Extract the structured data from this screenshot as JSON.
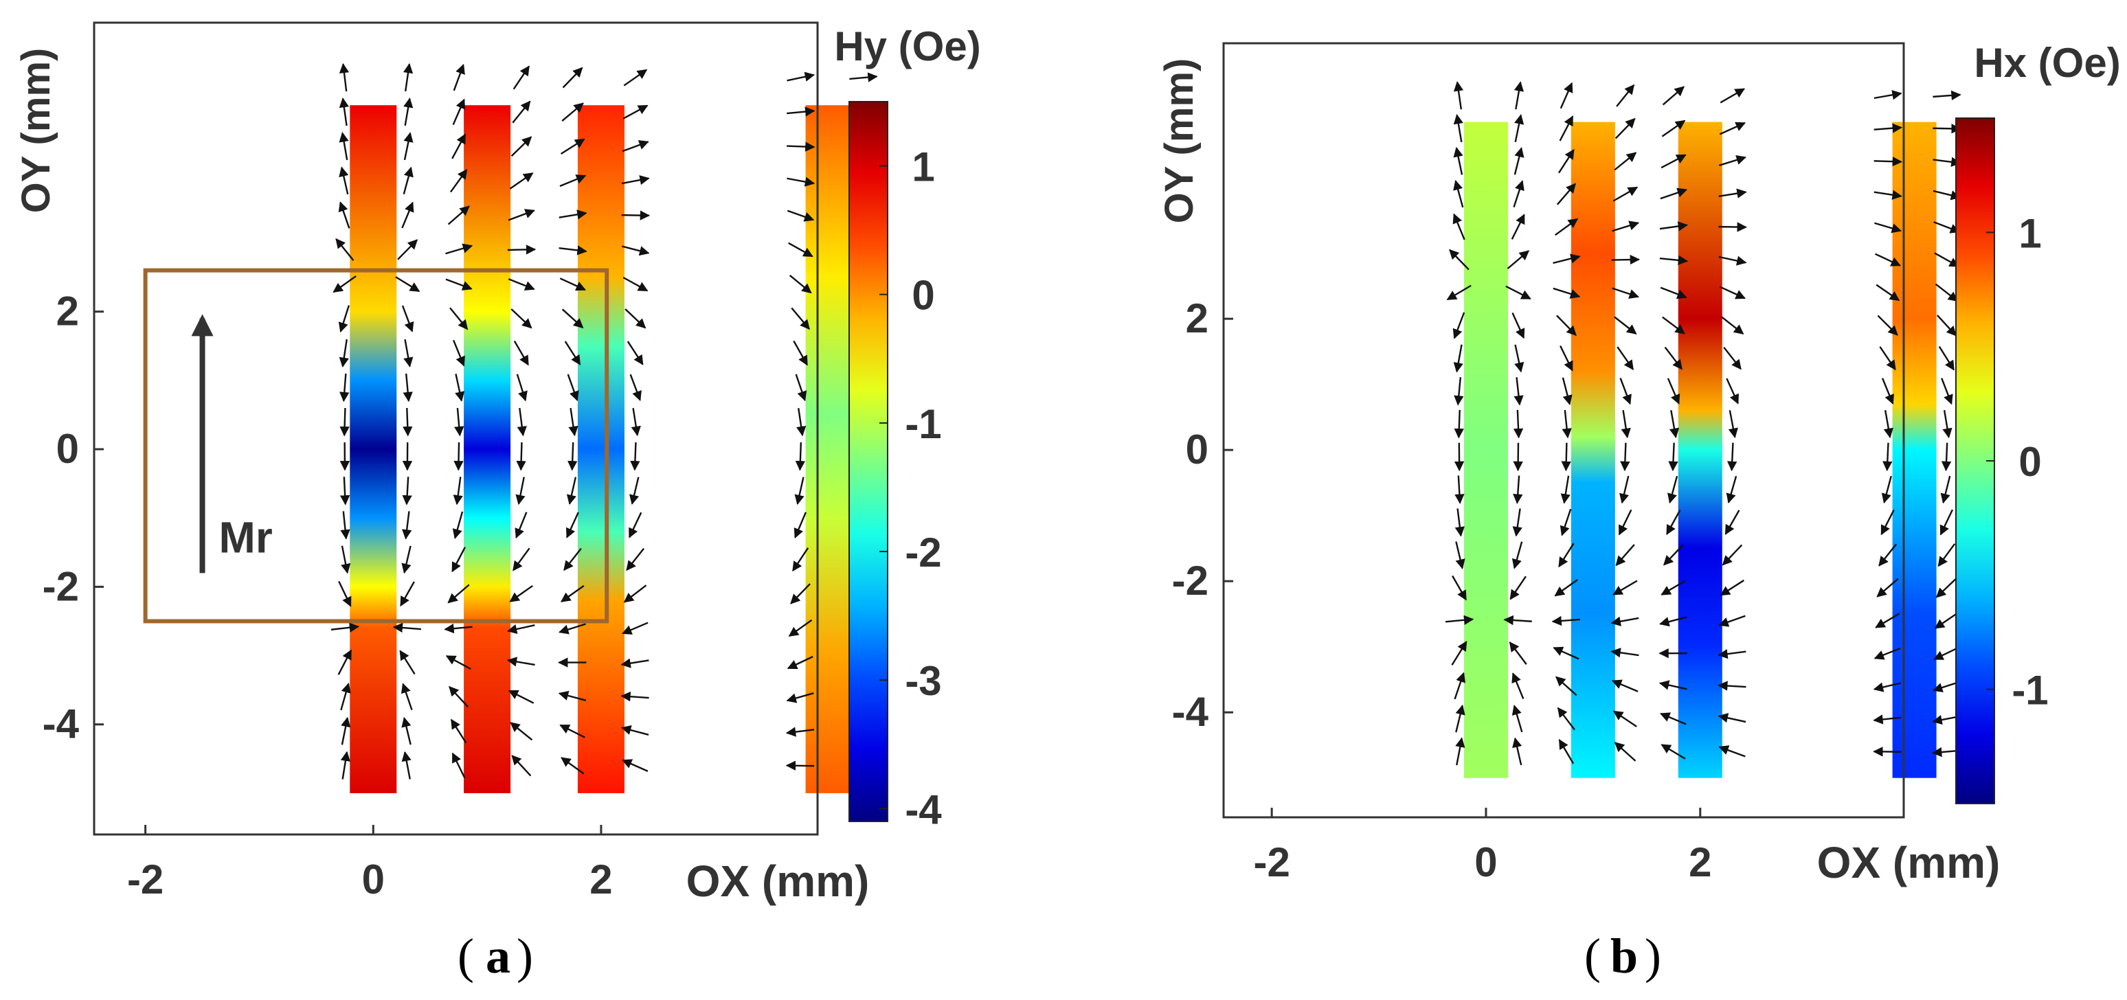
{
  "chart_data": [
    {
      "type": "heatmap",
      "panel": "a",
      "caption_letter": "a",
      "title": "",
      "xlabel": "OX (mm)",
      "ylabel": "OY (mm)",
      "xlim": [
        -2.45,
        3.9
      ],
      "ylim": [
        -5.6,
        6.2
      ],
      "xticks": [
        -2,
        0,
        2
      ],
      "xtick_labels": [
        "-2",
        "0",
        "2"
      ],
      "yticks": [
        -4,
        -2,
        0,
        2
      ],
      "ytick_labels": [
        "-4",
        "-2",
        "0",
        "2"
      ],
      "colorbar": {
        "label": "Hy (Oe)",
        "range": [
          -4.1,
          1.5
        ],
        "ticks": [
          1,
          0,
          -1,
          -2,
          -3,
          -4
        ],
        "tick_labels": [
          "1",
          "0",
          "-1",
          "-2",
          "-3",
          "-4"
        ]
      },
      "strips": [
        {
          "x": 0,
          "y_range": [
            -5,
            5
          ],
          "samples": [
            {
              "y": 5,
              "v": 0.9
            },
            {
              "y": 2,
              "v": -0.4
            },
            {
              "y": 1,
              "v": -2.6
            },
            {
              "y": 0,
              "v": -4.0
            },
            {
              "y": -1,
              "v": -2.6
            },
            {
              "y": -2,
              "v": -0.6
            },
            {
              "y": -2.6,
              "v": 0.3
            },
            {
              "y": -5,
              "v": 1.0
            }
          ]
        },
        {
          "x": 1,
          "y_range": [
            -5,
            5
          ],
          "samples": [
            {
              "y": 5,
              "v": 0.9
            },
            {
              "y": 2,
              "v": -0.6
            },
            {
              "y": 1,
              "v": -2.2
            },
            {
              "y": 0,
              "v": -3.6
            },
            {
              "y": -1,
              "v": -2.0
            },
            {
              "y": -2,
              "v": -0.5
            },
            {
              "y": -2.6,
              "v": 0.4
            },
            {
              "y": -5,
              "v": 1.0
            }
          ]
        },
        {
          "x": 2,
          "y_range": [
            -5,
            5
          ],
          "samples": [
            {
              "y": 5,
              "v": 0.6
            },
            {
              "y": 2.5,
              "v": -0.2
            },
            {
              "y": 1.5,
              "v": -1.6
            },
            {
              "y": 0,
              "v": -2.8
            },
            {
              "y": -1.2,
              "v": -1.6
            },
            {
              "y": -2.2,
              "v": -0.1
            },
            {
              "y": -5,
              "v": 0.7
            }
          ]
        },
        {
          "x": 4,
          "y_range": [
            -5,
            5
          ],
          "samples": [
            {
              "y": 5,
              "v": 0.3
            },
            {
              "y": 2.5,
              "v": -0.5
            },
            {
              "y": 0.5,
              "v": -1.3
            },
            {
              "y": -1,
              "v": -0.9
            },
            {
              "y": -3,
              "v": -0.1
            },
            {
              "y": -5,
              "v": 0.3
            }
          ]
        }
      ],
      "field_vectors_note": "Arrow field (quiver) showing in-plane field direction around the strips",
      "annotation_box": {
        "x_range": [
          -2,
          2.05
        ],
        "y_range": [
          -2.5,
          2.6
        ]
      },
      "annotation": {
        "text": "Mr",
        "arrow_from_y": -1.8,
        "arrow_to_y": 1.8,
        "x": -1.5
      }
    },
    {
      "type": "heatmap",
      "panel": "b",
      "caption_letter": "b",
      "title": "",
      "xlabel": "OX (mm)",
      "ylabel": "OY (mm)",
      "xlim": [
        -2.45,
        3.9
      ],
      "ylim": [
        -5.6,
        6.2
      ],
      "xticks": [
        -2,
        0,
        2
      ],
      "xtick_labels": [
        "-2",
        "0",
        "2"
      ],
      "yticks": [
        -4,
        -2,
        0,
        2
      ],
      "ytick_labels": [
        "-4",
        "-2",
        "0",
        "2"
      ],
      "colorbar": {
        "label": "Hx (Oe)",
        "range": [
          -1.5,
          1.5
        ],
        "ticks": [
          1,
          0,
          -1
        ],
        "tick_labels": [
          "1",
          "0",
          "-1"
        ]
      },
      "strips": [
        {
          "x": 0,
          "y_range": [
            -5,
            5
          ],
          "samples": [
            {
              "y": 5,
              "v": 0.2
            },
            {
              "y": 0,
              "v": 0.0
            },
            {
              "y": -5,
              "v": 0.1
            }
          ]
        },
        {
          "x": 1,
          "y_range": [
            -5,
            5
          ],
          "samples": [
            {
              "y": 5,
              "v": 0.6
            },
            {
              "y": 3,
              "v": 0.9
            },
            {
              "y": 1.2,
              "v": 0.7
            },
            {
              "y": 0.2,
              "v": 0.1
            },
            {
              "y": -0.5,
              "v": -0.6
            },
            {
              "y": -2.5,
              "v": -0.7
            },
            {
              "y": -5,
              "v": -0.4
            }
          ]
        },
        {
          "x": 2,
          "y_range": [
            -5,
            5
          ],
          "samples": [
            {
              "y": 5,
              "v": 0.6
            },
            {
              "y": 2,
              "v": 1.3
            },
            {
              "y": 0.6,
              "v": 0.6
            },
            {
              "y": 0,
              "v": -0.3
            },
            {
              "y": -1.5,
              "v": -1.2
            },
            {
              "y": -3,
              "v": -1.0
            },
            {
              "y": -5,
              "v": -0.5
            }
          ]
        },
        {
          "x": 4,
          "y_range": [
            -5,
            5
          ],
          "samples": [
            {
              "y": 5,
              "v": 0.6
            },
            {
              "y": 2,
              "v": 0.8
            },
            {
              "y": 0.7,
              "v": 0.5
            },
            {
              "y": 0,
              "v": -0.4
            },
            {
              "y": -2.5,
              "v": -0.9
            },
            {
              "y": -5,
              "v": -1.0
            }
          ]
        }
      ],
      "field_vectors_note": "Arrow field (quiver) showing in-plane field direction around the strips"
    }
  ],
  "captions": [
    {
      "open": "(",
      "letter": "a",
      "close": ")"
    },
    {
      "open": "(",
      "letter": "b",
      "close": ")"
    }
  ],
  "colors": {
    "axis": "#333333",
    "arrow": "#111111",
    "box": "#a0672c",
    "annotation_arrow": "#333333"
  }
}
